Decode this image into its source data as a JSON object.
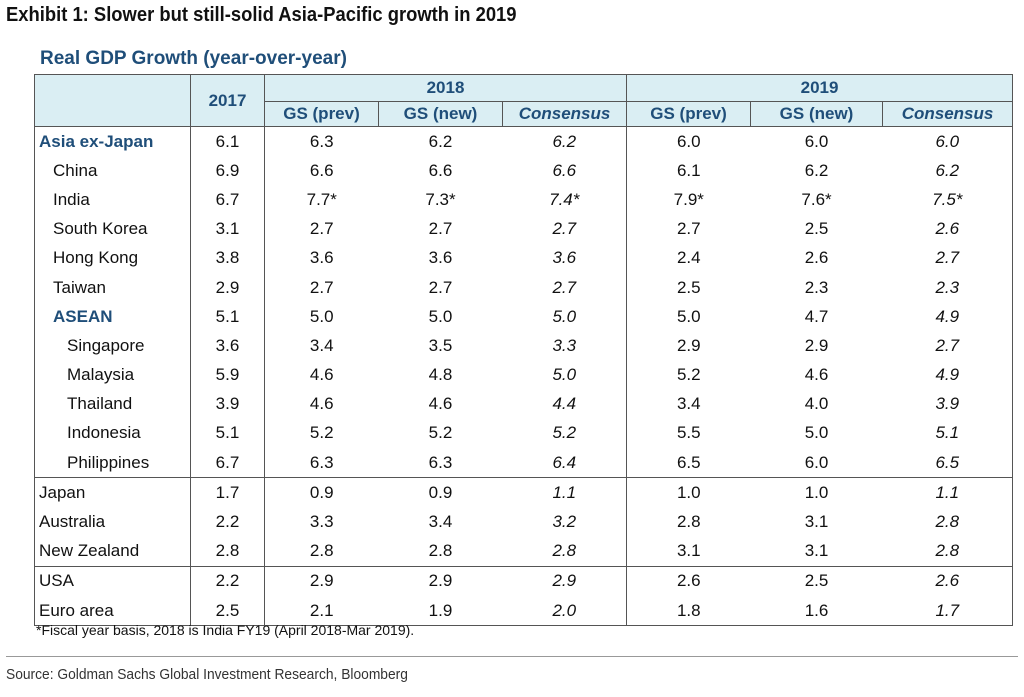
{
  "exhibit_title": "Exhibit 1: Slower but still-solid Asia-Pacific growth in 2019",
  "footnote": "*Fiscal year basis, 2018 is India FY19 (April 2018-Mar 2019).",
  "source": "Source: Goldman Sachs Global Investment Research, Bloomberg",
  "chart_data": {
    "type": "table",
    "title": "Real GDP Growth (year-over-year)",
    "header": {
      "col_2017": "2017",
      "year_2018": "2018",
      "year_2019": "2019",
      "sub_2018": [
        "GS (prev)",
        "GS (new)",
        "Consensus"
      ],
      "sub_2019": [
        "GS (prev)",
        "GS (new)",
        "Consensus"
      ]
    },
    "colors": {
      "header_bg": "#daeef3",
      "accent": "#1f4e79"
    },
    "groups": [
      {
        "rows": [
          {
            "country": "Asia ex-Japan",
            "level": 0,
            "aggregate": true,
            "values": [
              "6.1",
              "6.3",
              "6.2",
              "6.2",
              "6.0",
              "6.0",
              "6.0"
            ]
          },
          {
            "country": "China",
            "level": 1,
            "aggregate": false,
            "values": [
              "6.9",
              "6.6",
              "6.6",
              "6.6",
              "6.1",
              "6.2",
              "6.2"
            ]
          },
          {
            "country": "India",
            "level": 1,
            "aggregate": false,
            "values": [
              "6.7",
              "7.7*",
              "7.3*",
              "7.4*",
              "7.9*",
              "7.6*",
              "7.5*"
            ]
          },
          {
            "country": "South Korea",
            "level": 1,
            "aggregate": false,
            "values": [
              "3.1",
              "2.7",
              "2.7",
              "2.7",
              "2.7",
              "2.5",
              "2.6"
            ]
          },
          {
            "country": "Hong Kong",
            "level": 1,
            "aggregate": false,
            "values": [
              "3.8",
              "3.6",
              "3.6",
              "3.6",
              "2.4",
              "2.6",
              "2.7"
            ]
          },
          {
            "country": "Taiwan",
            "level": 1,
            "aggregate": false,
            "values": [
              "2.9",
              "2.7",
              "2.7",
              "2.7",
              "2.5",
              "2.3",
              "2.3"
            ]
          },
          {
            "country": "ASEAN",
            "level": 1,
            "aggregate": true,
            "values": [
              "5.1",
              "5.0",
              "5.0",
              "5.0",
              "5.0",
              "4.7",
              "4.9"
            ]
          },
          {
            "country": "Singapore",
            "level": 2,
            "aggregate": false,
            "values": [
              "3.6",
              "3.4",
              "3.5",
              "3.3",
              "2.9",
              "2.9",
              "2.7"
            ]
          },
          {
            "country": "Malaysia",
            "level": 2,
            "aggregate": false,
            "values": [
              "5.9",
              "4.6",
              "4.8",
              "5.0",
              "5.2",
              "4.6",
              "4.9"
            ]
          },
          {
            "country": "Thailand",
            "level": 2,
            "aggregate": false,
            "values": [
              "3.9",
              "4.6",
              "4.6",
              "4.4",
              "3.4",
              "4.0",
              "3.9"
            ]
          },
          {
            "country": "Indonesia",
            "level": 2,
            "aggregate": false,
            "values": [
              "5.1",
              "5.2",
              "5.2",
              "5.2",
              "5.5",
              "5.0",
              "5.1"
            ]
          },
          {
            "country": "Philippines",
            "level": 2,
            "aggregate": false,
            "values": [
              "6.7",
              "6.3",
              "6.3",
              "6.4",
              "6.5",
              "6.0",
              "6.5"
            ]
          }
        ]
      },
      {
        "rows": [
          {
            "country": "Japan",
            "level": 0,
            "aggregate": false,
            "values": [
              "1.7",
              "0.9",
              "0.9",
              "1.1",
              "1.0",
              "1.0",
              "1.1"
            ]
          },
          {
            "country": "Australia",
            "level": 0,
            "aggregate": false,
            "values": [
              "2.2",
              "3.3",
              "3.4",
              "3.2",
              "2.8",
              "3.1",
              "2.8"
            ]
          },
          {
            "country": "New Zealand",
            "level": 0,
            "aggregate": false,
            "values": [
              "2.8",
              "2.8",
              "2.8",
              "2.8",
              "3.1",
              "3.1",
              "2.8"
            ]
          }
        ]
      },
      {
        "rows": [
          {
            "country": "USA",
            "level": 0,
            "aggregate": false,
            "values": [
              "2.2",
              "2.9",
              "2.9",
              "2.9",
              "2.6",
              "2.5",
              "2.6"
            ]
          },
          {
            "country": "Euro area",
            "level": 0,
            "aggregate": false,
            "values": [
              "2.5",
              "2.1",
              "1.9",
              "2.0",
              "1.8",
              "1.6",
              "1.7"
            ]
          }
        ]
      }
    ]
  }
}
